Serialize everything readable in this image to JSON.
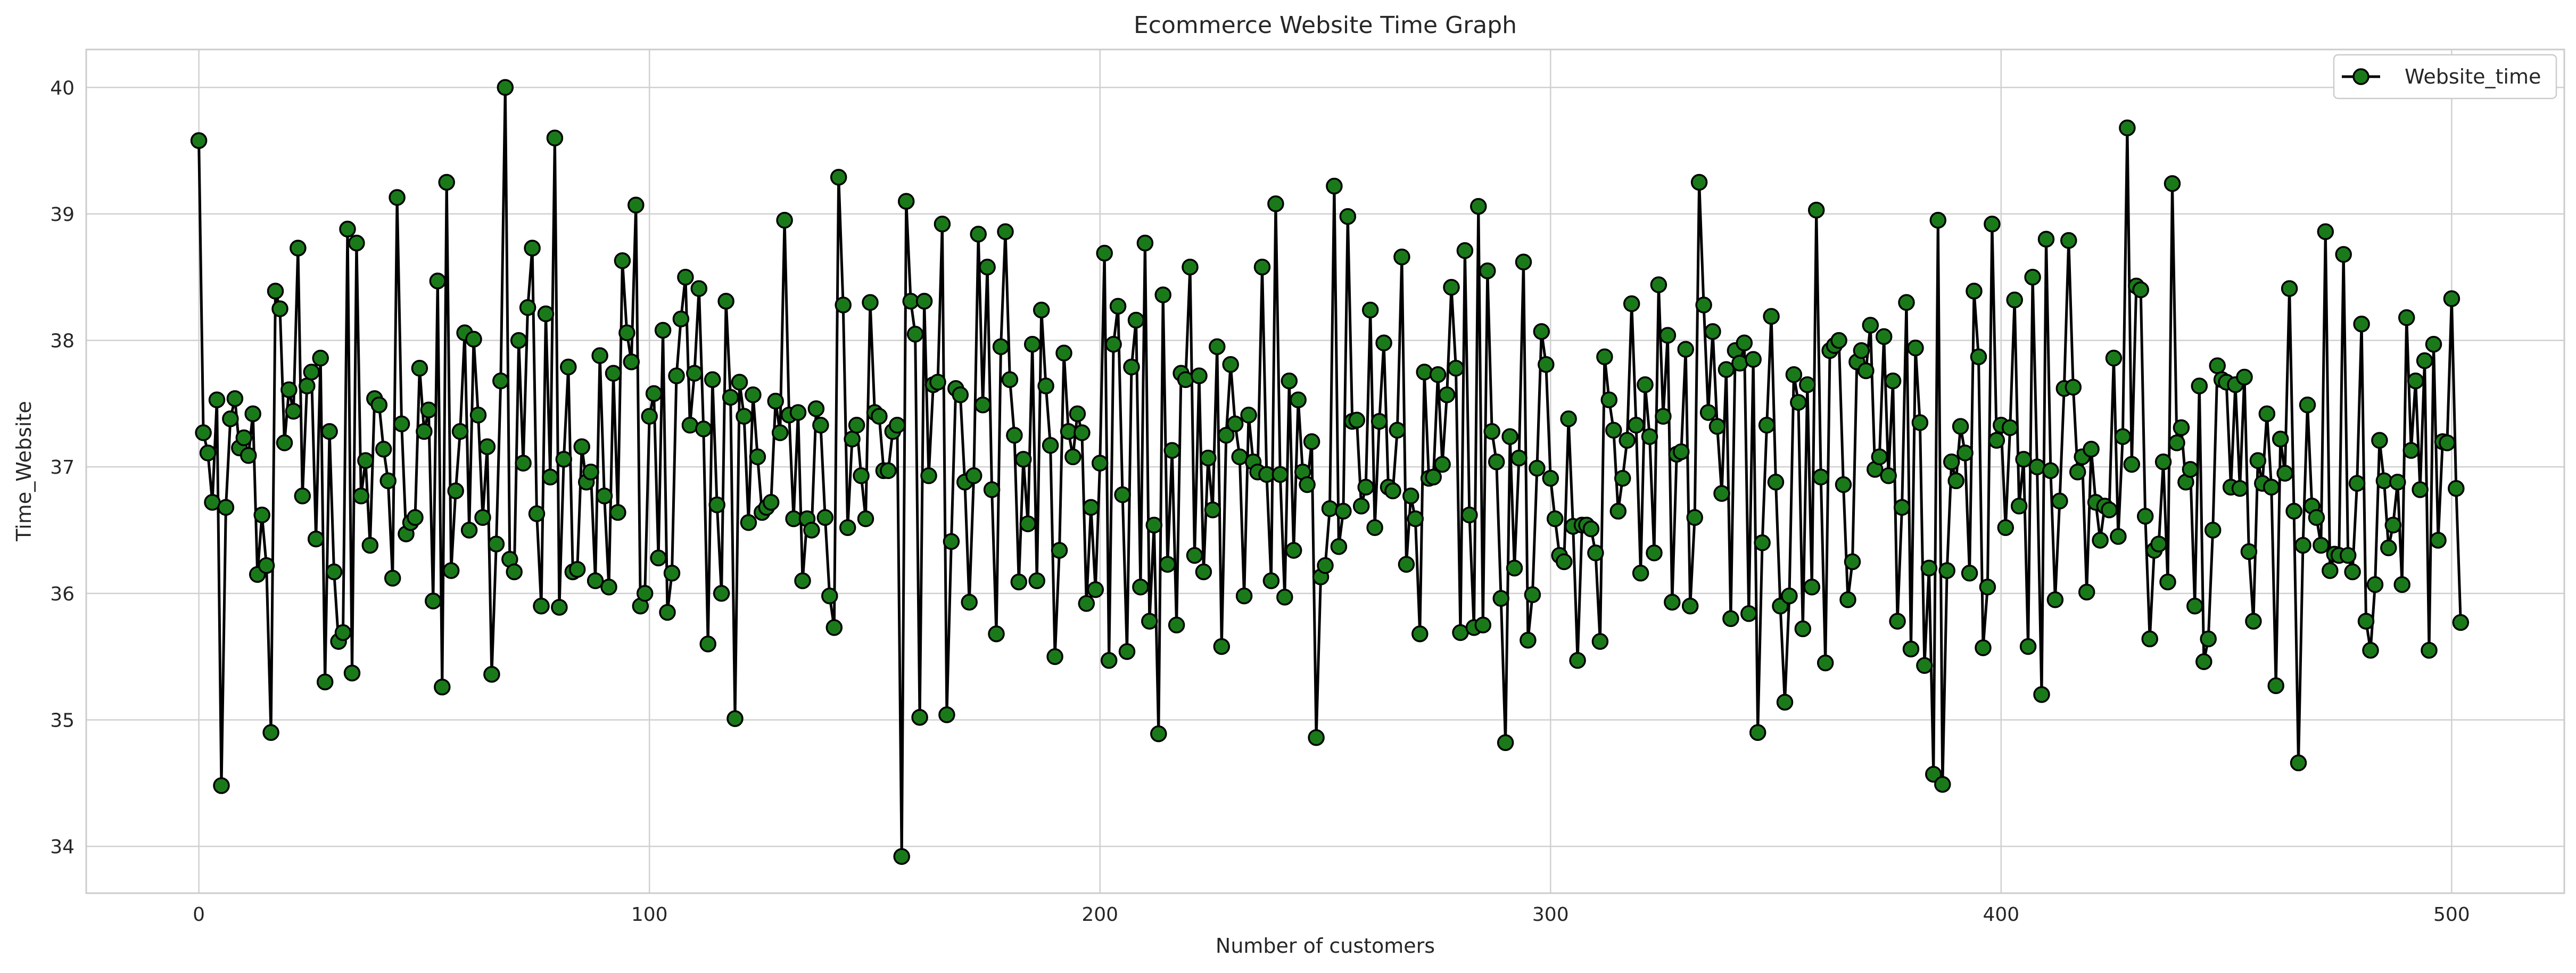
{
  "chart_data": {
    "type": "line",
    "title": "Ecommerce Website Time Graph",
    "xlabel": "Number of customers",
    "ylabel": "Time_Website",
    "xlim": [
      -25,
      525
    ],
    "ylim": [
      33.63,
      40.3
    ],
    "xticks": [
      0,
      100,
      200,
      300,
      400,
      500
    ],
    "yticks": [
      34,
      35,
      36,
      37,
      38,
      39,
      40
    ],
    "grid": true,
    "legend": "top-right",
    "line_color": "#000000",
    "marker_color": "#1a7a1a",
    "series": [
      {
        "name": "Website_time",
        "x_start": 0,
        "x_step": 1,
        "values": [
          39.58,
          37.27,
          37.11,
          36.72,
          37.53,
          34.48,
          36.68,
          37.38,
          37.54,
          37.15,
          37.23,
          37.09,
          37.42,
          36.15,
          36.62,
          36.22,
          34.9,
          38.39,
          38.25,
          37.19,
          37.61,
          37.44,
          38.73,
          36.77,
          37.64,
          37.75,
          36.43,
          37.86,
          35.3,
          37.28,
          36.17,
          35.62,
          35.69,
          38.88,
          35.37,
          38.77,
          36.77,
          37.05,
          36.38,
          37.54,
          37.49,
          37.14,
          36.89,
          36.12,
          39.13,
          37.34,
          36.47,
          36.56,
          36.6,
          37.78,
          37.28,
          37.45,
          35.94,
          38.47,
          35.26,
          39.25,
          36.18,
          36.81,
          37.28,
          38.06,
          36.5,
          38.01,
          37.41,
          36.6,
          37.16,
          35.36,
          36.39,
          37.68,
          40.0,
          36.27,
          36.17,
          38.0,
          37.03,
          38.26,
          38.73,
          36.63,
          35.9,
          38.21,
          36.92,
          39.6,
          35.89,
          37.06,
          37.79,
          36.17,
          36.19,
          37.16,
          36.88,
          36.96,
          36.1,
          37.88,
          36.77,
          36.05,
          37.74,
          36.64,
          38.63,
          38.06,
          37.83,
          39.07,
          35.9,
          36.0,
          37.4,
          37.58,
          36.28,
          38.08,
          35.85,
          36.16,
          37.72,
          38.17,
          38.5,
          37.33,
          37.74,
          38.41,
          37.3,
          35.6,
          37.69,
          36.7,
          36.0,
          38.31,
          37.55,
          35.01,
          37.67,
          37.4,
          36.56,
          37.57,
          37.08,
          36.64,
          36.68,
          36.72,
          37.52,
          37.27,
          38.95,
          37.41,
          36.59,
          37.43,
          36.1,
          36.59,
          36.5,
          37.46,
          37.33,
          36.6,
          35.98,
          35.73,
          39.29,
          38.28,
          36.52,
          37.22,
          37.33,
          36.93,
          36.59,
          38.3,
          37.43,
          37.4,
          36.97,
          36.97,
          37.28,
          37.33,
          33.92,
          39.1,
          38.31,
          38.05,
          35.02,
          38.31,
          36.93,
          37.65,
          37.67,
          38.92,
          35.04,
          36.41,
          37.62,
          37.57,
          36.88,
          35.93,
          36.93,
          38.84,
          37.49,
          38.58,
          36.82,
          35.68,
          37.95,
          38.86,
          37.69,
          37.25,
          36.09,
          37.06,
          36.55,
          37.97,
          36.1,
          38.24,
          37.64,
          37.17,
          35.5,
          36.34,
          37.9,
          37.28,
          37.08,
          37.42,
          37.27,
          35.92,
          36.68,
          36.03,
          37.03,
          38.69,
          35.47,
          37.97,
          38.27,
          36.78,
          35.54,
          37.79,
          38.16,
          36.05,
          38.77,
          35.78,
          36.54,
          34.89,
          38.36,
          36.23,
          37.13,
          35.75,
          37.74,
          37.69,
          38.58,
          36.3,
          37.72,
          36.17,
          37.07,
          36.66,
          37.95,
          35.58,
          37.25,
          37.81,
          37.34,
          37.08,
          35.98,
          37.41,
          37.04,
          36.96,
          38.58,
          36.94,
          36.1,
          39.08,
          36.94,
          35.97,
          37.68,
          36.34,
          37.53,
          36.96,
          36.86,
          37.2,
          34.86,
          36.13,
          36.22,
          36.67,
          39.22,
          36.37,
          36.65,
          38.98,
          37.36,
          37.37,
          36.69,
          36.84,
          38.24,
          36.52,
          37.36,
          37.98,
          36.84,
          36.81,
          37.29,
          38.66,
          36.23,
          36.77,
          36.59,
          35.68,
          37.75,
          36.91,
          36.92,
          37.73,
          37.02,
          37.57,
          38.42,
          37.78,
          35.69,
          38.71,
          36.62,
          35.73,
          39.06,
          35.75,
          38.55,
          37.28,
          37.04,
          35.96,
          34.82,
          37.24,
          36.2,
          37.07,
          38.62,
          35.63,
          35.99,
          36.99,
          38.07,
          37.81,
          36.91,
          36.59,
          36.3,
          36.25,
          37.38,
          36.53,
          35.47,
          36.54,
          36.54,
          36.51,
          36.32,
          35.62,
          37.87,
          37.53,
          37.29,
          36.65,
          36.91,
          37.21,
          38.29,
          37.33,
          36.16,
          37.65,
          37.24,
          36.32,
          38.44,
          37.4,
          38.04,
          35.93,
          37.1,
          37.12,
          37.93,
          35.9,
          36.6,
          39.25,
          38.28,
          37.43,
          38.07,
          37.32,
          36.79,
          37.77,
          35.8,
          37.92,
          37.82,
          37.98,
          35.84,
          37.85,
          34.9,
          36.4,
          37.33,
          38.19,
          36.88,
          35.9,
          35.14,
          35.98,
          37.73,
          37.51,
          35.72,
          37.65,
          36.05,
          39.03,
          36.92,
          35.45,
          37.92,
          37.96,
          38.0,
          36.86,
          35.95,
          36.25,
          37.83,
          37.92,
          37.76,
          38.12,
          36.98,
          37.08,
          38.03,
          36.93,
          37.68,
          35.78,
          36.68,
          38.3,
          35.56,
          37.94,
          37.35,
          35.43,
          36.2,
          34.57,
          38.95,
          34.49,
          36.18,
          37.04,
          36.89,
          37.32,
          37.11,
          36.16,
          38.39,
          37.87,
          35.57,
          36.05,
          38.92,
          37.21,
          37.33,
          36.52,
          37.31,
          38.32,
          36.69,
          37.06,
          35.58,
          38.5,
          37.0,
          35.2,
          38.8,
          36.97,
          35.95,
          36.73,
          37.62,
          38.79,
          37.63,
          36.96,
          37.08,
          36.01,
          37.14,
          36.72,
          36.42,
          36.69,
          36.66,
          37.86,
          36.45,
          37.24,
          39.68,
          37.02,
          38.43,
          38.4,
          36.61,
          35.64,
          36.34,
          36.39,
          37.04,
          36.09,
          39.24,
          37.19,
          37.31,
          36.88,
          36.98,
          35.9,
          37.64,
          35.46,
          35.64,
          36.5,
          37.8,
          37.69,
          37.67,
          36.84,
          37.65,
          36.83,
          37.71,
          36.33,
          35.78,
          37.05,
          36.87,
          37.42,
          36.84,
          35.27,
          37.22,
          36.95,
          38.41,
          36.65,
          34.66,
          36.38,
          37.49,
          36.69,
          36.6,
          36.38,
          38.86,
          36.18,
          36.31,
          36.3,
          38.68,
          36.3,
          36.17,
          36.87,
          38.13,
          35.78,
          35.55,
          36.07,
          37.21,
          36.89,
          36.36,
          36.54,
          36.88,
          36.07,
          38.18,
          37.13,
          37.68,
          36.82,
          37.84,
          35.55,
          37.97,
          36.42,
          37.2,
          37.19,
          38.33,
          36.83,
          35.77
        ]
      }
    ]
  }
}
